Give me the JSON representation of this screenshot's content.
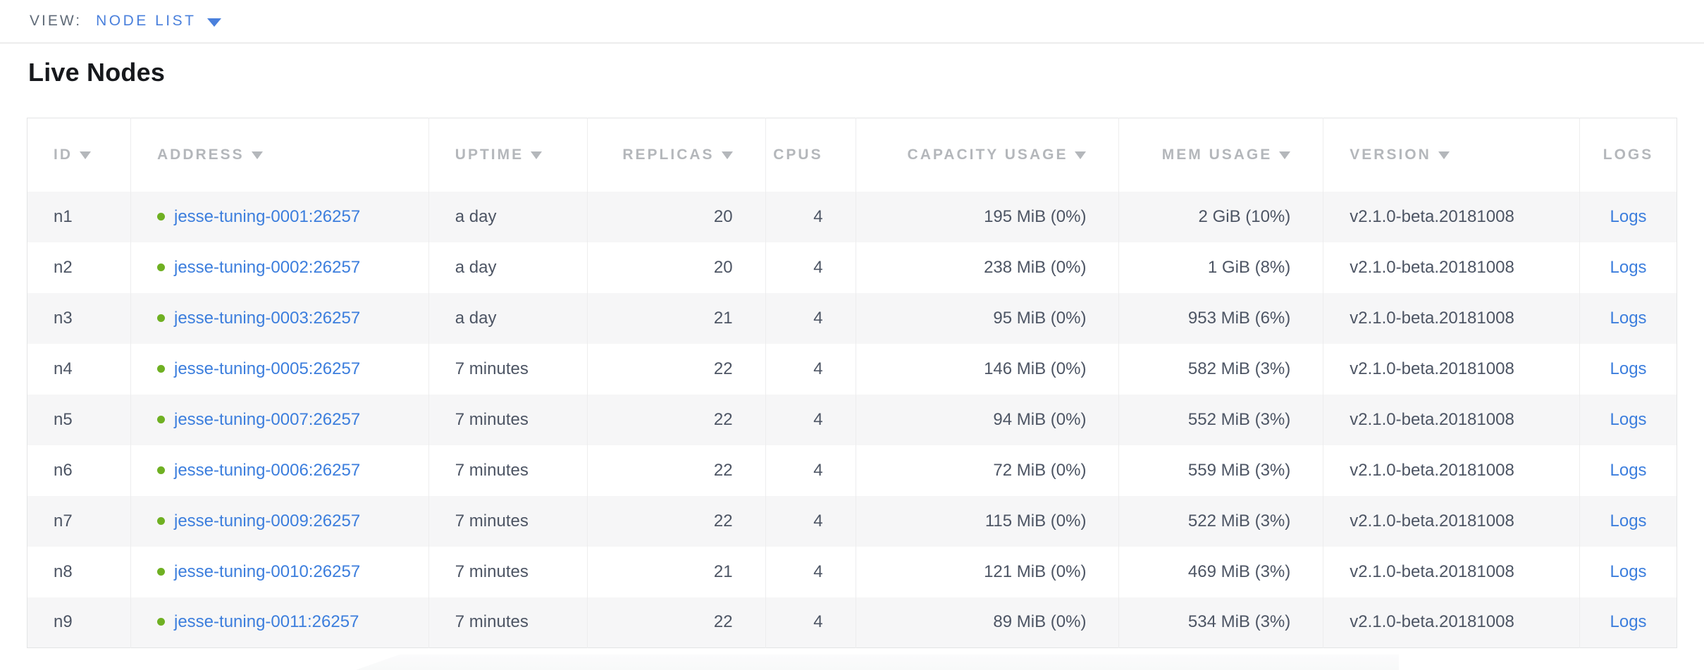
{
  "view_bar": {
    "label": "VIEW:",
    "selected": "NODE LIST"
  },
  "page": {
    "title": "Live Nodes"
  },
  "icons": {
    "view_dropdown": "caret-down-icon",
    "column_sort": "triangle-down-icon",
    "node_status": "live-status-dot"
  },
  "colors": {
    "link_blue": "#3c7edd",
    "live_dot_green": "#6fb022",
    "header_gray": "#b4b7bb",
    "body_text": "#4d5564",
    "row_stripe": "#f6f6f7",
    "table_border": "#e3e4e5",
    "view_label_gray": "#606b78"
  },
  "table": {
    "columns": [
      {
        "key": "id",
        "label": "ID",
        "sortable": true,
        "align": "left"
      },
      {
        "key": "address",
        "label": "ADDRESS",
        "sortable": true,
        "align": "left"
      },
      {
        "key": "uptime",
        "label": "UPTIME",
        "sortable": true,
        "align": "left"
      },
      {
        "key": "replicas",
        "label": "REPLICAS",
        "sortable": true,
        "align": "right"
      },
      {
        "key": "cpus",
        "label": "CPUS",
        "sortable": false,
        "align": "right"
      },
      {
        "key": "capacity",
        "label": "CAPACITY USAGE",
        "sortable": true,
        "align": "right"
      },
      {
        "key": "mem",
        "label": "MEM USAGE",
        "sortable": true,
        "align": "right"
      },
      {
        "key": "version",
        "label": "VERSION",
        "sortable": true,
        "align": "left"
      },
      {
        "key": "logs",
        "label": "LOGS",
        "sortable": false,
        "align": "center"
      }
    ],
    "rows": [
      {
        "id": "n1",
        "status": "live",
        "address": "jesse-tuning-0001:26257",
        "uptime": "a day",
        "replicas": "20",
        "cpus": "4",
        "capacity": "195 MiB (0%)",
        "mem": "2 GiB (10%)",
        "version": "v2.1.0-beta.20181008",
        "logs": "Logs"
      },
      {
        "id": "n2",
        "status": "live",
        "address": "jesse-tuning-0002:26257",
        "uptime": "a day",
        "replicas": "20",
        "cpus": "4",
        "capacity": "238 MiB (0%)",
        "mem": "1 GiB (8%)",
        "version": "v2.1.0-beta.20181008",
        "logs": "Logs"
      },
      {
        "id": "n3",
        "status": "live",
        "address": "jesse-tuning-0003:26257",
        "uptime": "a day",
        "replicas": "21",
        "cpus": "4",
        "capacity": "95 MiB (0%)",
        "mem": "953 MiB (6%)",
        "version": "v2.1.0-beta.20181008",
        "logs": "Logs"
      },
      {
        "id": "n4",
        "status": "live",
        "address": "jesse-tuning-0005:26257",
        "uptime": "7 minutes",
        "replicas": "22",
        "cpus": "4",
        "capacity": "146 MiB (0%)",
        "mem": "582 MiB (3%)",
        "version": "v2.1.0-beta.20181008",
        "logs": "Logs"
      },
      {
        "id": "n5",
        "status": "live",
        "address": "jesse-tuning-0007:26257",
        "uptime": "7 minutes",
        "replicas": "22",
        "cpus": "4",
        "capacity": "94 MiB (0%)",
        "mem": "552 MiB (3%)",
        "version": "v2.1.0-beta.20181008",
        "logs": "Logs"
      },
      {
        "id": "n6",
        "status": "live",
        "address": "jesse-tuning-0006:26257",
        "uptime": "7 minutes",
        "replicas": "22",
        "cpus": "4",
        "capacity": "72 MiB (0%)",
        "mem": "559 MiB (3%)",
        "version": "v2.1.0-beta.20181008",
        "logs": "Logs"
      },
      {
        "id": "n7",
        "status": "live",
        "address": "jesse-tuning-0009:26257",
        "uptime": "7 minutes",
        "replicas": "22",
        "cpus": "4",
        "capacity": "115 MiB (0%)",
        "mem": "522 MiB (3%)",
        "version": "v2.1.0-beta.20181008",
        "logs": "Logs"
      },
      {
        "id": "n8",
        "status": "live",
        "address": "jesse-tuning-0010:26257",
        "uptime": "7 minutes",
        "replicas": "21",
        "cpus": "4",
        "capacity": "121 MiB (0%)",
        "mem": "469 MiB (3%)",
        "version": "v2.1.0-beta.20181008",
        "logs": "Logs"
      },
      {
        "id": "n9",
        "status": "live",
        "address": "jesse-tuning-0011:26257",
        "uptime": "7 minutes",
        "replicas": "22",
        "cpus": "4",
        "capacity": "89 MiB (0%)",
        "mem": "534 MiB (3%)",
        "version": "v2.1.0-beta.20181008",
        "logs": "Logs"
      }
    ]
  }
}
